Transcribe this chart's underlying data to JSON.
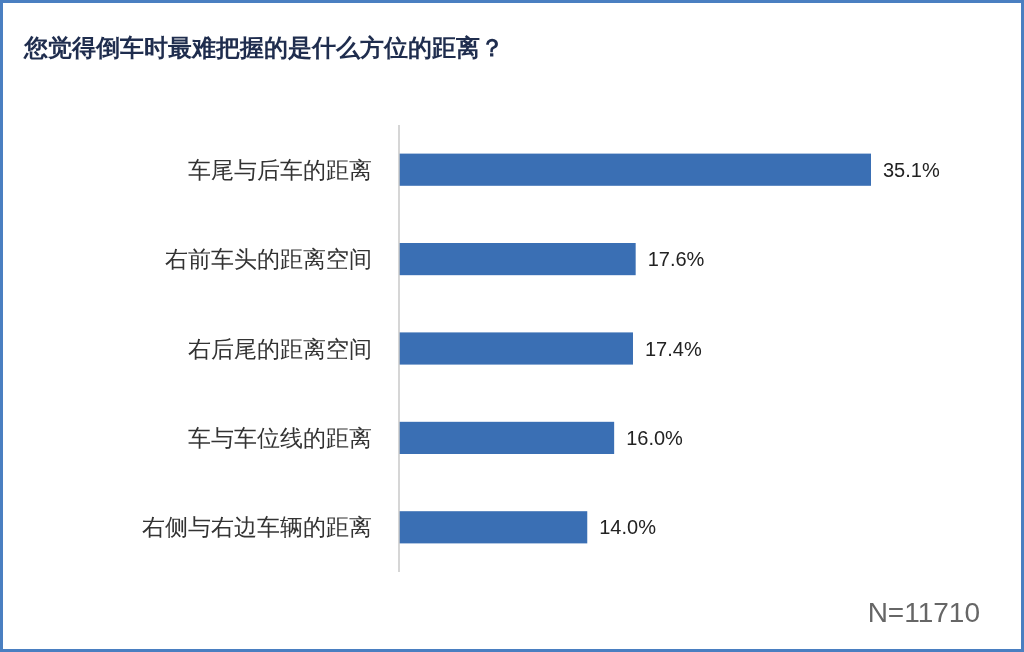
{
  "chart_data": {
    "type": "bar",
    "orientation": "horizontal",
    "title": "您觉得倒车时最难把握的是什么方位的距离？",
    "categories": [
      "车尾与后车的距离",
      "右前车头的距离空间",
      "右后尾的距离空间",
      "车与车位线的距离",
      "右侧与右边车辆的距离"
    ],
    "values": [
      35.1,
      17.6,
      17.4,
      16.0,
      14.0
    ],
    "value_labels": [
      "35.1%",
      "17.6%",
      "17.4%",
      "16.0%",
      "14.0%"
    ],
    "color": "#3a6fb4",
    "annotations": [
      "N=11710"
    ]
  }
}
